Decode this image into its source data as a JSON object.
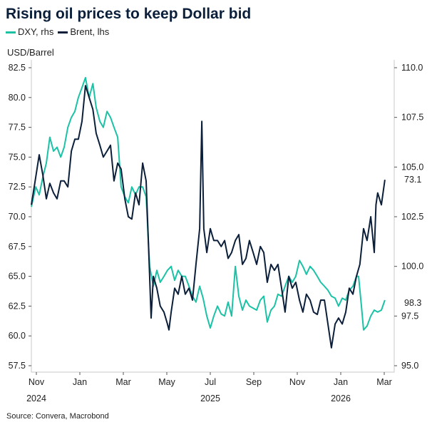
{
  "chart_data": {
    "type": "line",
    "title": "Rising oil prices to keep Dollar bid",
    "ylabel": "USD/Barrel",
    "source": "Source: Convera, Macrobond",
    "x_unit": "months since Nov 2024",
    "x_ticks": [
      {
        "m": 0,
        "label": "Nov",
        "year": "2024"
      },
      {
        "m": 2,
        "label": "Jan",
        "year": ""
      },
      {
        "m": 4,
        "label": "Mar",
        "year": ""
      },
      {
        "m": 6,
        "label": "May",
        "year": ""
      },
      {
        "m": 8,
        "label": "Jul",
        "year": "2025"
      },
      {
        "m": 10,
        "label": "Sep",
        "year": ""
      },
      {
        "m": 12,
        "label": "Nov",
        "year": ""
      },
      {
        "m": 14,
        "label": "Jan",
        "year": "2026"
      },
      {
        "m": 16,
        "label": "Mar",
        "year": ""
      }
    ],
    "left_axis": {
      "min": 57.5,
      "max": 82.5,
      "ticks": [
        "57.5",
        "60.0",
        "62.5",
        "65.0",
        "67.5",
        "70.0",
        "72.5",
        "75.0",
        "77.5",
        "80.0",
        "82.5"
      ]
    },
    "right_axis": {
      "min": 95,
      "max": 110,
      "ticks": [
        "95.0",
        "97.5",
        "100.0",
        "102.5",
        "105.0",
        "107.5",
        "110.0"
      ]
    },
    "series": [
      {
        "name": "DXY, rhs",
        "axis": "right",
        "color": "#1bc2a6",
        "end_label": "98.3",
        "points": [
          [
            -0.23,
            103
          ],
          [
            -0.03,
            104
          ],
          [
            0.13,
            103.6
          ],
          [
            0.3,
            104.5
          ],
          [
            0.46,
            105.2
          ],
          [
            0.62,
            106.5
          ],
          [
            0.79,
            105.8
          ],
          [
            0.95,
            106
          ],
          [
            1.12,
            105.5
          ],
          [
            1.28,
            106
          ],
          [
            1.45,
            107
          ],
          [
            1.61,
            107.5
          ],
          [
            1.77,
            107.8
          ],
          [
            1.93,
            108.5
          ],
          [
            2.1,
            109
          ],
          [
            2.26,
            109.5
          ],
          [
            2.43,
            108.5
          ],
          [
            2.6,
            109.2
          ],
          [
            2.75,
            108
          ],
          [
            2.92,
            107.3
          ],
          [
            3.08,
            107
          ],
          [
            3.25,
            107.8
          ],
          [
            3.41,
            107.5
          ],
          [
            3.57,
            107
          ],
          [
            3.74,
            106.5
          ],
          [
            3.9,
            104
          ],
          [
            4.07,
            103.5
          ],
          [
            4.23,
            103.2
          ],
          [
            4.39,
            104
          ],
          [
            4.56,
            103.6
          ],
          [
            4.72,
            104
          ],
          [
            4.89,
            104
          ],
          [
            5.05,
            103.5
          ],
          [
            5.21,
            100
          ],
          [
            5.38,
            99
          ],
          [
            5.54,
            99.8
          ],
          [
            5.7,
            99.2
          ],
          [
            5.87,
            99.5
          ],
          [
            6.03,
            99.8
          ],
          [
            6.2,
            100
          ],
          [
            6.36,
            99.3
          ],
          [
            6.52,
            99.8
          ],
          [
            6.69,
            99.5
          ],
          [
            6.85,
            99.5
          ],
          [
            7.02,
            99
          ],
          [
            7.18,
            98.5
          ],
          [
            7.34,
            98.2
          ],
          [
            7.51,
            99
          ],
          [
            7.67,
            98.4
          ],
          [
            7.84,
            97.5
          ],
          [
            8.0,
            96.9
          ],
          [
            8.16,
            97.5
          ],
          [
            8.33,
            98
          ],
          [
            8.5,
            97.6
          ],
          [
            8.66,
            97.5
          ],
          [
            8.82,
            98.2
          ],
          [
            8.98,
            97.5
          ],
          [
            9.15,
            100
          ],
          [
            9.31,
            98.5
          ],
          [
            9.48,
            97.8
          ],
          [
            9.64,
            98.3
          ],
          [
            9.8,
            98
          ],
          [
            9.97,
            97.9
          ],
          [
            10.13,
            97.8
          ],
          [
            10.3,
            98.3
          ],
          [
            10.46,
            98.5
          ],
          [
            10.62,
            97.2
          ],
          [
            10.79,
            97.8
          ],
          [
            10.95,
            98
          ],
          [
            11.11,
            98.6
          ],
          [
            11.28,
            98.5
          ],
          [
            11.44,
            99
          ],
          [
            11.61,
            99.5
          ],
          [
            11.77,
            99.2
          ],
          [
            11.93,
            99.5
          ],
          [
            12.1,
            100.3
          ],
          [
            12.26,
            100
          ],
          [
            12.42,
            99.6
          ],
          [
            12.59,
            100
          ],
          [
            12.75,
            99.8
          ],
          [
            12.92,
            99.5
          ],
          [
            13.08,
            99.2
          ],
          [
            13.25,
            99
          ],
          [
            13.41,
            98.8
          ],
          [
            13.57,
            98.5
          ],
          [
            13.74,
            98.4
          ],
          [
            13.9,
            98
          ],
          [
            14.07,
            98.4
          ],
          [
            14.23,
            98.3
          ],
          [
            14.39,
            98.8
          ],
          [
            14.56,
            99
          ],
          [
            14.72,
            99.5
          ],
          [
            14.82,
            99.5
          ],
          [
            14.95,
            98
          ],
          [
            15.05,
            96.8
          ],
          [
            15.21,
            97
          ],
          [
            15.38,
            97.5
          ],
          [
            15.54,
            97.8
          ],
          [
            15.7,
            97.7
          ],
          [
            15.87,
            97.8
          ],
          [
            16.03,
            98.3
          ]
        ]
      },
      {
        "name": "Brent, lhs",
        "axis": "left",
        "color": "#0b1f3a",
        "end_label": "73.1",
        "points": [
          [
            -0.23,
            71
          ],
          [
            -0.1,
            72.5
          ],
          [
            0.03,
            74
          ],
          [
            0.13,
            75.2
          ],
          [
            0.3,
            73.5
          ],
          [
            0.46,
            71.5
          ],
          [
            0.62,
            72.8
          ],
          [
            0.79,
            72
          ],
          [
            0.95,
            71.5
          ],
          [
            1.12,
            73
          ],
          [
            1.28,
            73
          ],
          [
            1.45,
            72.5
          ],
          [
            1.61,
            75.5
          ],
          [
            1.77,
            76.5
          ],
          [
            1.93,
            76.5
          ],
          [
            2.1,
            78
          ],
          [
            2.26,
            81
          ],
          [
            2.43,
            80
          ],
          [
            2.6,
            79
          ],
          [
            2.75,
            77
          ],
          [
            2.92,
            76
          ],
          [
            3.08,
            75
          ],
          [
            3.25,
            75.5
          ],
          [
            3.41,
            76
          ],
          [
            3.57,
            73
          ],
          [
            3.74,
            74.5
          ],
          [
            3.9,
            74
          ],
          [
            4.07,
            71.5
          ],
          [
            4.23,
            70
          ],
          [
            4.39,
            69.8
          ],
          [
            4.56,
            72
          ],
          [
            4.72,
            71
          ],
          [
            4.89,
            74.5
          ],
          [
            5.05,
            73
          ],
          [
            5.21,
            65
          ],
          [
            5.28,
            61.5
          ],
          [
            5.38,
            65
          ],
          [
            5.54,
            64
          ],
          [
            5.7,
            62.5
          ],
          [
            5.87,
            62
          ],
          [
            6.03,
            61
          ],
          [
            6.1,
            60.5
          ],
          [
            6.2,
            62
          ],
          [
            6.36,
            64
          ],
          [
            6.52,
            63.5
          ],
          [
            6.69,
            65
          ],
          [
            6.85,
            63.5
          ],
          [
            7.02,
            64
          ],
          [
            7.18,
            63
          ],
          [
            7.34,
            66
          ],
          [
            7.51,
            69
          ],
          [
            7.61,
            78
          ],
          [
            7.7,
            69
          ],
          [
            7.84,
            67
          ],
          [
            8.0,
            69
          ],
          [
            8.16,
            68
          ],
          [
            8.33,
            68
          ],
          [
            8.5,
            67.5
          ],
          [
            8.66,
            68
          ],
          [
            8.82,
            66.5
          ],
          [
            8.98,
            67
          ],
          [
            9.15,
            68
          ],
          [
            9.31,
            68.5
          ],
          [
            9.48,
            66
          ],
          [
            9.64,
            66.5
          ],
          [
            9.8,
            68
          ],
          [
            9.97,
            67
          ],
          [
            10.13,
            66
          ],
          [
            10.3,
            67.5
          ],
          [
            10.46,
            67
          ],
          [
            10.62,
            64.5
          ],
          [
            10.79,
            66
          ],
          [
            10.95,
            65.5
          ],
          [
            11.11,
            66
          ],
          [
            11.28,
            64
          ],
          [
            11.44,
            62
          ],
          [
            11.61,
            65
          ],
          [
            11.77,
            64
          ],
          [
            11.93,
            64.5
          ],
          [
            12.1,
            63
          ],
          [
            12.26,
            62
          ],
          [
            12.42,
            63.5
          ],
          [
            12.59,
            63
          ],
          [
            12.75,
            62
          ],
          [
            12.92,
            61.8
          ],
          [
            13.08,
            63
          ],
          [
            13.25,
            63
          ],
          [
            13.41,
            61
          ],
          [
            13.57,
            59
          ],
          [
            13.74,
            61
          ],
          [
            13.9,
            61.5
          ],
          [
            14.07,
            61
          ],
          [
            14.23,
            62
          ],
          [
            14.39,
            64
          ],
          [
            14.56,
            63.5
          ],
          [
            14.72,
            65
          ],
          [
            14.88,
            66
          ],
          [
            15.05,
            69
          ],
          [
            15.21,
            68
          ],
          [
            15.38,
            70
          ],
          [
            15.54,
            67
          ],
          [
            15.62,
            71
          ],
          [
            15.7,
            72
          ],
          [
            15.87,
            71
          ],
          [
            16.03,
            73.1
          ]
        ]
      }
    ]
  }
}
